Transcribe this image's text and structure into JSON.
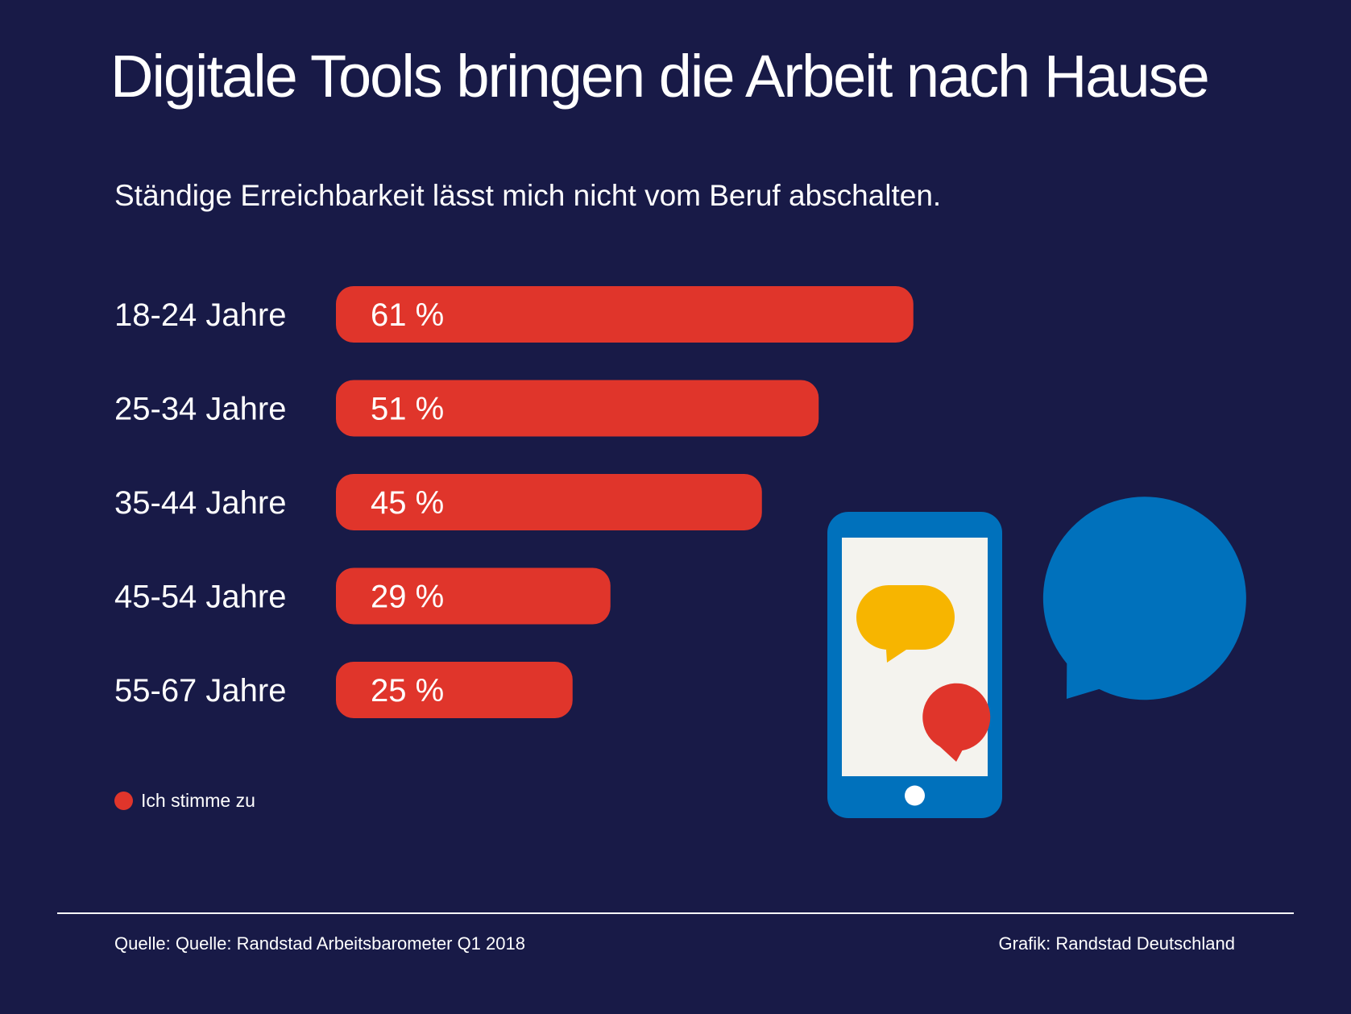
{
  "title": "Digitale Tools bringen die Arbeit nach Hause",
  "subtitle": "Ständige Erreichbarkeit lässt mich nicht vom Beruf abschalten.",
  "colors": {
    "background": "#181a47",
    "bar": "#e0352b",
    "phone": "#0071bc",
    "phone_screen": "#f4f3ee",
    "bubble_yellow": "#f7b500",
    "bubble_red": "#e0352b",
    "bubble_blue": "#0071bc"
  },
  "chart_data": {
    "type": "bar",
    "orientation": "horizontal",
    "categories": [
      "18-24 Jahre",
      "25-34 Jahre",
      "35-44 Jahre",
      "45-54 Jahre",
      "55-67 Jahre"
    ],
    "series": [
      {
        "name": "Ich stimme zu",
        "values": [
          61,
          51,
          45,
          29,
          25
        ]
      }
    ],
    "value_labels": [
      "61 %",
      "51 %",
      "45 %",
      "29 %",
      "25 %"
    ],
    "xlim": [
      0,
      100
    ],
    "grid": false,
    "legend_position": "bottom-left"
  },
  "legend": {
    "label": "Ich stimme zu"
  },
  "footer": {
    "source": "Quelle: Quelle: Randstad Arbeitsbarometer Q1 2018",
    "credit": "Grafik: Randstad Deutschland"
  },
  "illustration": {
    "phone_icon": "smartphone-icon",
    "bubble_icons": [
      "speech-bubble-yellow-icon",
      "speech-bubble-red-icon",
      "speech-bubble-blue-icon"
    ]
  }
}
